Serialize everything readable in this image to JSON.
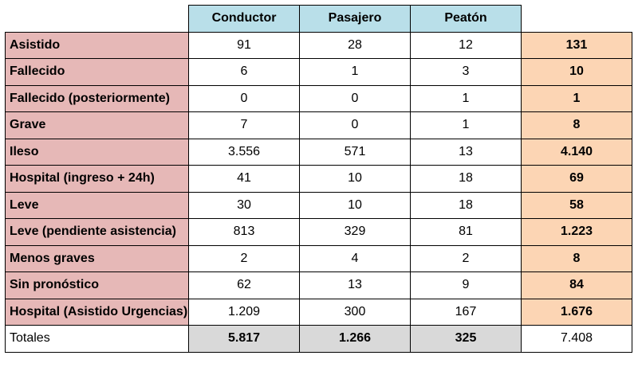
{
  "headers": [
    "Conductor",
    "Pasajero",
    "Peatón"
  ],
  "rows": [
    {
      "label": "Asistido",
      "values": [
        "91",
        "28",
        "12"
      ],
      "total": "131"
    },
    {
      "label": "Fallecido",
      "values": [
        "6",
        "1",
        "3"
      ],
      "total": "10"
    },
    {
      "label": "Fallecido (posteriormente)",
      "values": [
        "0",
        "0",
        "1"
      ],
      "total": "1"
    },
    {
      "label": "Grave",
      "values": [
        "7",
        "0",
        "1"
      ],
      "total": "8"
    },
    {
      "label": "Ileso",
      "values": [
        "3.556",
        "571",
        "13"
      ],
      "total": "4.140"
    },
    {
      "label": "Hospital (ingreso + 24h)",
      "values": [
        "41",
        "10",
        "18"
      ],
      "total": "69"
    },
    {
      "label": "Leve",
      "values": [
        "30",
        "10",
        "18"
      ],
      "total": "58"
    },
    {
      "label": "Leve (pendiente asistencia)",
      "values": [
        "813",
        "329",
        "81"
      ],
      "total": "1.223"
    },
    {
      "label": "Menos graves",
      "values": [
        "2",
        "4",
        "2"
      ],
      "total": "8"
    },
    {
      "label": "Sin pronóstico",
      "values": [
        "62",
        "13",
        "9"
      ],
      "total": "84"
    },
    {
      "label": "Hospital (Asistido Urgencias)",
      "values": [
        "1.209",
        "300",
        "167"
      ],
      "total": "1.676"
    }
  ],
  "totals": {
    "label": "Totales",
    "values": [
      "5.817",
      "1.266",
      "325"
    ],
    "total": "7.408"
  },
  "colors": {
    "header": "#b9dfe9",
    "row_label": "#e6b8b7",
    "total_column": "#fcd5b4",
    "totals_row": "#d9d9d9"
  }
}
